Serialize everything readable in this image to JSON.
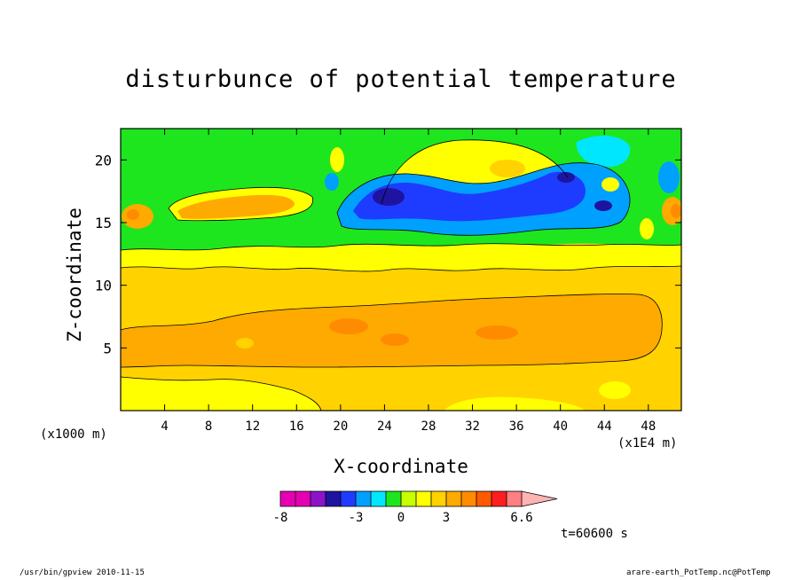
{
  "chart_data": {
    "type": "heatmap",
    "title": "disturbunce of potential temperature",
    "xlabel": "X-coordinate",
    "ylabel": "Z-coordinate",
    "x_unit_label": "(x1000 m)",
    "x_unit_label_right": "(x1E4 m)",
    "x_ticks": [
      4,
      8,
      12,
      16,
      20,
      24,
      28,
      32,
      36,
      40,
      44,
      48
    ],
    "y_ticks": [
      5,
      10,
      15,
      20
    ],
    "xlim": [
      0,
      51
    ],
    "ylim": [
      0,
      22.5
    ],
    "colorbar": {
      "tick_labels": [
        "-8",
        "-3",
        "0",
        "3",
        "6.6"
      ],
      "tick_values": [
        -8,
        -3,
        0,
        3,
        6.6
      ],
      "levels": [
        -8,
        -7,
        -6,
        -5,
        -4,
        -3,
        -2,
        -1,
        0,
        1,
        2,
        3,
        4,
        5,
        6,
        6.6
      ],
      "colors": [
        "#e600b4",
        "#e600b4",
        "#8c14c8",
        "#1e14a0",
        "#1e3cff",
        "#00a0ff",
        "#00e6ff",
        "#1ee61e",
        "#c8ff00",
        "#ffff00",
        "#ffd200",
        "#ffaa00",
        "#ff8c00",
        "#ff5a00",
        "#ff1e1e",
        "#ff8080"
      ],
      "extend_color": "#ffb4b4"
    },
    "grid": false
  },
  "time_label": "t=60600 s",
  "footer_left": "/usr/bin/gpview  2010-11-15",
  "footer_right": "arare-earth_PotTemp.nc@PotTemp"
}
